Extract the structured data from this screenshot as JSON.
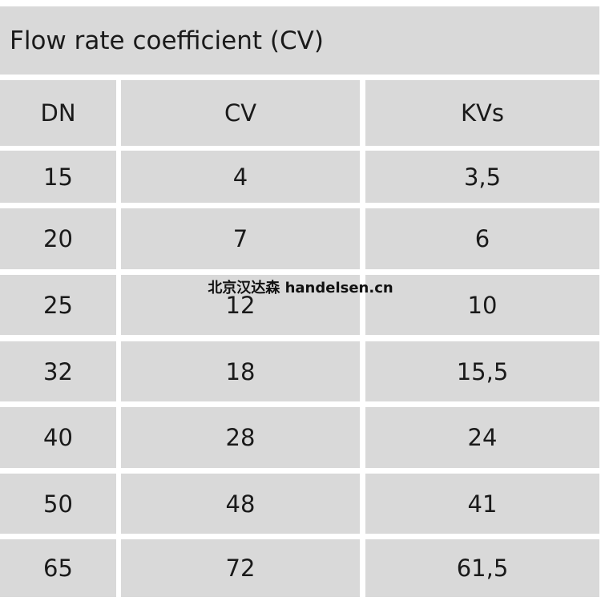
{
  "table": {
    "title": "Flow rate coefficient (CV)",
    "header": [
      "DN",
      "CV",
      "KVs"
    ],
    "rows": [
      [
        "15",
        "4",
        "3,5"
      ],
      [
        "20",
        "7",
        "6"
      ],
      [
        "25",
        "12",
        "10"
      ],
      [
        "32",
        "18",
        "15,5"
      ],
      [
        "40",
        "28",
        "24"
      ],
      [
        "50",
        "48",
        "41"
      ],
      [
        "65",
        "72",
        "61,5"
      ]
    ]
  },
  "watermark": "北京汉达森 handelsen.cn"
}
